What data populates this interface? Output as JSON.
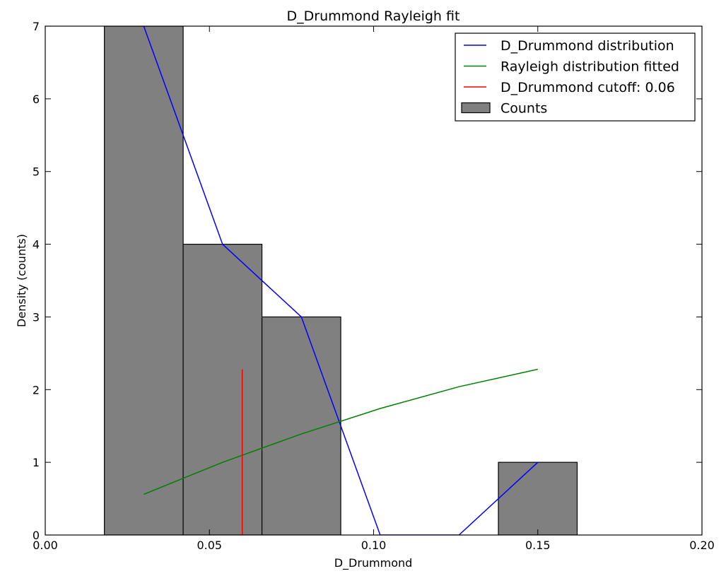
{
  "chart_data": {
    "type": "bar",
    "title": "D_Drummond Rayleigh fit",
    "xlabel": "D_Drummond",
    "ylabel": "Density (counts)",
    "xlim": [
      0.0,
      0.2
    ],
    "ylim": [
      0,
      7
    ],
    "x_ticks": [
      "0.00",
      "0.05",
      "0.10",
      "0.15",
      "0.20"
    ],
    "x_tick_values": [
      0.0,
      0.05,
      0.1,
      0.15,
      0.2
    ],
    "y_ticks": [
      "0",
      "1",
      "2",
      "3",
      "4",
      "5",
      "6",
      "7"
    ],
    "y_tick_values": [
      0,
      1,
      2,
      3,
      4,
      5,
      6,
      7
    ],
    "grid": false,
    "legend_position": "top-right",
    "histogram": {
      "name": "Counts",
      "color": "#808080",
      "bins": [
        {
          "x0": 0.018,
          "x1": 0.042,
          "value": 7
        },
        {
          "x0": 0.042,
          "x1": 0.066,
          "value": 4
        },
        {
          "x0": 0.066,
          "x1": 0.09,
          "value": 3
        },
        {
          "x0": 0.09,
          "x1": 0.114,
          "value": 0
        },
        {
          "x0": 0.114,
          "x1": 0.138,
          "value": 0
        },
        {
          "x0": 0.138,
          "x1": 0.162,
          "value": 1
        }
      ]
    },
    "series": [
      {
        "name": "D_Drummond distribution",
        "color": "#0000ff",
        "x": [
          0.03,
          0.054,
          0.078,
          0.102,
          0.126,
          0.15
        ],
        "y": [
          7,
          4,
          3,
          0,
          0,
          1
        ]
      },
      {
        "name": "Rayleigh distribution fitted",
        "color": "#008000",
        "x": [
          0.03,
          0.054,
          0.078,
          0.102,
          0.126,
          0.15
        ],
        "y": [
          0.56,
          1.0,
          1.39,
          1.74,
          2.04,
          2.28
        ]
      }
    ],
    "cutoff": {
      "name": "D_Drummond cutoff: 0.06",
      "color": "#ff0000",
      "x": 0.06,
      "y_range": [
        0,
        2.28
      ]
    },
    "legend": [
      {
        "label": "D_Drummond distribution",
        "kind": "line",
        "color": "#0000ff"
      },
      {
        "label": "Rayleigh distribution fitted",
        "kind": "line",
        "color": "#008000"
      },
      {
        "label": "D_Drummond cutoff: 0.06",
        "kind": "line",
        "color": "#ff0000"
      },
      {
        "label": "Counts",
        "kind": "patch",
        "color": "#808080"
      }
    ]
  }
}
